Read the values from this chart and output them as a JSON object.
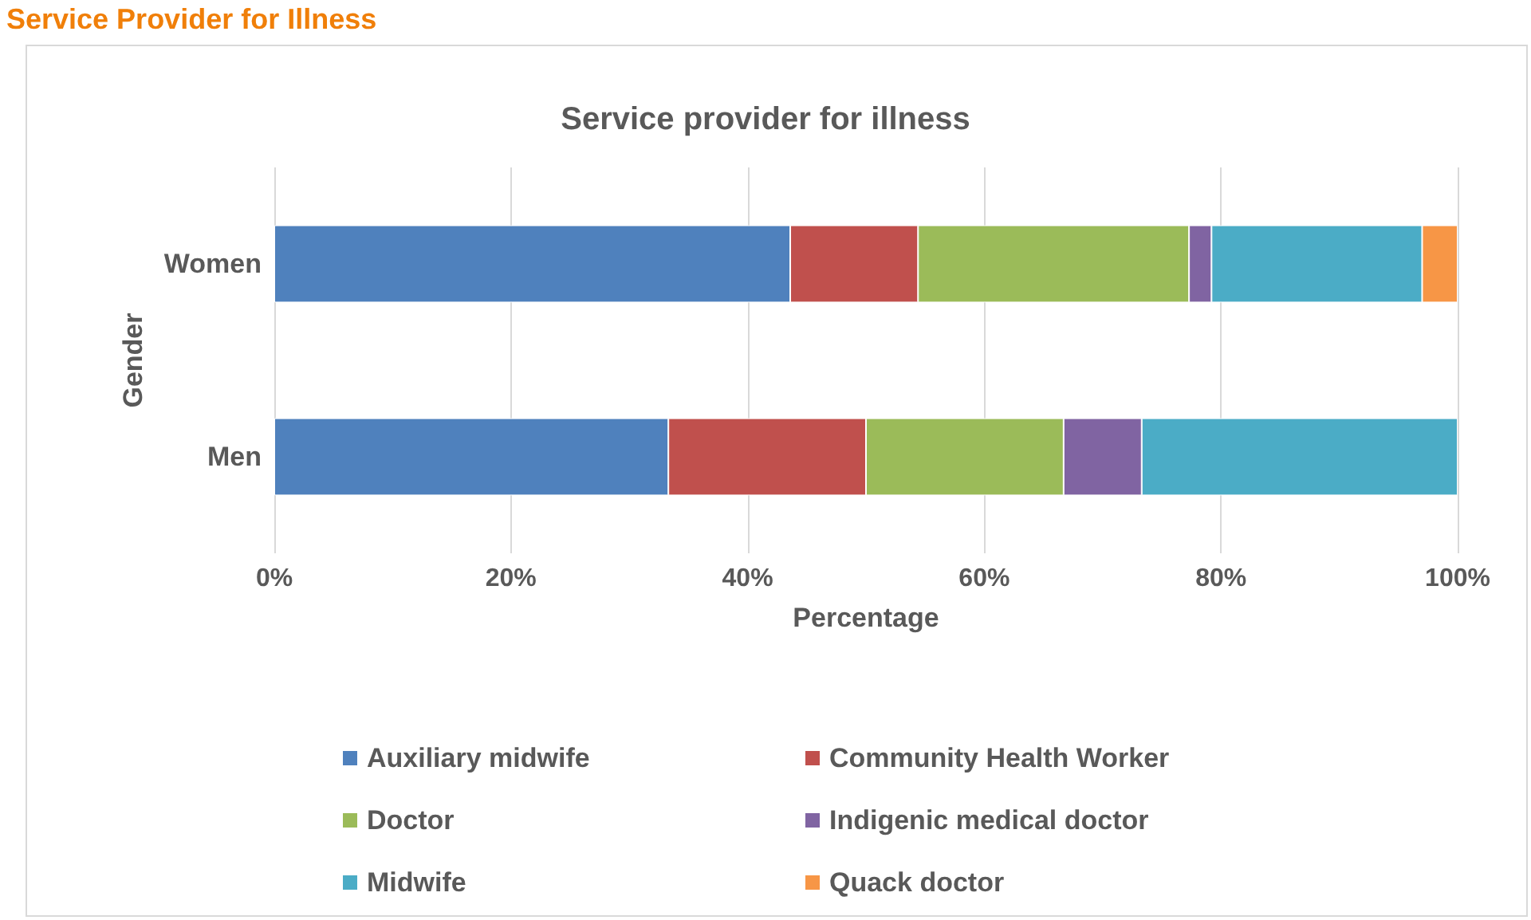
{
  "chart_data": {
    "type": "bar",
    "orientation": "horizontal",
    "stacked": true,
    "annotations": [
      "Service Provider for Illness"
    ],
    "title": "Service provider for illness",
    "xlabel": "Percentage",
    "ylabel": "Gender",
    "categories": [
      "Women",
      "Men"
    ],
    "series": [
      {
        "name": "Auxiliary midwife",
        "color": "#4f81bd",
        "values": [
          43.6,
          33.3
        ]
      },
      {
        "name": "Community Health Worker",
        "color": "#c0504d",
        "values": [
          10.8,
          16.7
        ]
      },
      {
        "name": "Doctor",
        "color": "#9bbb59",
        "values": [
          22.9,
          16.7
        ]
      },
      {
        "name": "Indigenic medical doctor",
        "color": "#8064a2",
        "values": [
          1.9,
          6.6
        ]
      },
      {
        "name": "Midwife",
        "color": "#4bacc6",
        "values": [
          17.8,
          26.7
        ]
      },
      {
        "name": "Quack doctor",
        "color": "#f79646",
        "values": [
          3.0,
          null
        ]
      }
    ],
    "xlim": [
      0,
      100
    ],
    "xticks": [
      {
        "value": 0,
        "label": "0%"
      },
      {
        "value": 20,
        "label": "20%"
      },
      {
        "value": 40,
        "label": "40%"
      },
      {
        "value": 60,
        "label": "60%"
      },
      {
        "value": 80,
        "label": "80%"
      },
      {
        "value": 100,
        "label": "100%"
      }
    ],
    "grid": "x",
    "legend": "bottom"
  }
}
